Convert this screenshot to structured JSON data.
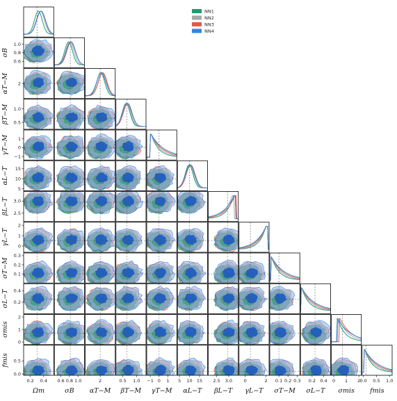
{
  "chart_data": {
    "type": "corner",
    "title": "",
    "grid": false,
    "legend_placement": "top-center",
    "parameters": [
      {
        "label": "Ωm",
        "range": [
          0.1,
          0.55
        ],
        "truth": 0.3,
        "ticks": [
          "0.2",
          "0.4"
        ],
        "tick_values": [
          0.2,
          0.4
        ]
      },
      {
        "label": "σB",
        "range": [
          0.45,
          1.15
        ],
        "truth": 0.82,
        "ticks": [
          "0.6",
          "0.8",
          "1.0"
        ],
        "tick_values": [
          0.6,
          0.8,
          1.0
        ]
      },
      {
        "label": "αT−M",
        "range": [
          0.5,
          3.5
        ],
        "truth": 2.0,
        "ticks": [
          "2"
        ],
        "tick_values": [
          2.0
        ]
      },
      {
        "label": "βT−M",
        "range": [
          0.25,
          1.35
        ],
        "truth": 0.65,
        "ticks": [
          "0.5",
          "1.0"
        ],
        "tick_values": [
          0.5,
          1.0
        ]
      },
      {
        "label": "γT−M",
        "range": [
          -1.4,
          2.0
        ],
        "truth": 0.0,
        "ticks": [
          "−1",
          "0",
          "1"
        ],
        "tick_values": [
          -1,
          0,
          1
        ]
      },
      {
        "label": "αL−T",
        "range": [
          4,
          19
        ],
        "truth": 10.0,
        "ticks": [
          "5",
          "10",
          "15"
        ],
        "tick_values": [
          5,
          10,
          15
        ]
      },
      {
        "label": "βL−T",
        "range": [
          2.15,
          3.4
        ],
        "truth": 2.95,
        "ticks": [
          "2.5",
          "3.0"
        ],
        "tick_values": [
          2.5,
          3.0
        ]
      },
      {
        "label": "γL−T",
        "range": [
          -0.6,
          2.3
        ],
        "truth": 0.5,
        "ticks": [
          "0",
          "2"
        ],
        "tick_values": [
          0,
          2
        ]
      },
      {
        "label": "σT−M",
        "range": [
          0.0,
          0.33
        ],
        "truth": 0.1,
        "ticks": [
          "0.1",
          "0.2",
          "0.3"
        ],
        "tick_values": [
          0.1,
          0.2,
          0.3
        ]
      },
      {
        "label": "σL−T",
        "range": [
          0.0,
          0.52
        ],
        "truth": 0.25,
        "ticks": [
          "0.2",
          "0.4"
        ],
        "tick_values": [
          0.2,
          0.4
        ]
      },
      {
        "label": "σmis",
        "range": [
          -0.2,
          2.2
        ],
        "truth": 0.7,
        "ticks": [
          "0",
          "1",
          "2"
        ],
        "tick_values": [
          0,
          1,
          2
        ]
      },
      {
        "label": "fmis",
        "range": [
          -0.05,
          1.1
        ],
        "truth": 0.1,
        "ticks": [
          "0.0",
          "0.5",
          "1.0"
        ],
        "tick_values": [
          0.0,
          0.5,
          1.0
        ]
      }
    ],
    "y_ticks": {
      "σB": {
        "ticks": [
          "0.6",
          "0.8",
          "1.0"
        ],
        "tick_values": [
          0.6,
          0.8,
          1.0
        ]
      },
      "αT−M": {
        "ticks": [
          "2"
        ],
        "tick_values": [
          2
        ]
      },
      "βT−M": {
        "ticks": [
          "0.5",
          "1.0"
        ],
        "tick_values": [
          0.5,
          1.0
        ]
      },
      "γT−M": {
        "ticks": [
          "−1",
          "0",
          "1"
        ],
        "tick_values": [
          -1,
          0,
          1
        ]
      },
      "αL−T": {
        "ticks": [
          "5",
          "10",
          "15"
        ],
        "tick_values": [
          5,
          10,
          15
        ]
      },
      "βL−T": {
        "ticks": [
          "2.5",
          "3.0"
        ],
        "tick_values": [
          2.5,
          3.0
        ]
      },
      "γL−T": {
        "ticks": [
          "0",
          "1",
          "2"
        ],
        "tick_values": [
          0,
          1,
          2
        ]
      },
      "σT−M": {
        "ticks": [
          "0.1",
          "0.2",
          "0.3"
        ],
        "tick_values": [
          0.1,
          0.2,
          0.3
        ]
      },
      "σL−T": {
        "ticks": [
          "0.2",
          "0.4"
        ],
        "tick_values": [
          0.2,
          0.4
        ]
      },
      "σmis": {
        "ticks": [
          "0",
          "1",
          "2"
        ],
        "tick_values": [
          0,
          1,
          2
        ]
      },
      "fmis": {
        "ticks": [
          "0.0",
          "0.5"
        ],
        "tick_values": [
          0.0,
          0.5
        ]
      }
    },
    "series": [
      {
        "name": "NN1",
        "color": "#1a9e6e"
      },
      {
        "name": "NN2",
        "color": "#a6a6a6"
      },
      {
        "name": "NN3",
        "color": "#e8574a"
      },
      {
        "name": "NN4",
        "color": "#2f86e0"
      }
    ],
    "marginal_peaks": {
      "Ωm": [
        0.32,
        0.35,
        0.36,
        0.36
      ],
      "σB": [
        0.78,
        0.81,
        0.84,
        0.83
      ],
      "αT−M": [
        2.05,
        2.2,
        2.25,
        2.1
      ],
      "βT−M": [
        0.62,
        0.64,
        0.68,
        0.66
      ],
      "γT−M": [
        -0.9,
        -0.9,
        -0.9,
        -0.9
      ],
      "αL−T": [
        9.8,
        10.2,
        10.6,
        10.3
      ],
      "βL−T": [
        3.2,
        3.15,
        3.25,
        3.22
      ],
      "γL−T": [
        2.0,
        2.0,
        2.0,
        2.0
      ],
      "σT−M": [
        0.02,
        0.02,
        0.02,
        0.02
      ],
      "σL−T": [
        0.02,
        0.02,
        0.02,
        0.02
      ],
      "σmis": [
        0.3,
        0.4,
        0.5,
        0.3
      ],
      "fmis": [
        0.05,
        0.05,
        0.05,
        0.05
      ]
    }
  }
}
